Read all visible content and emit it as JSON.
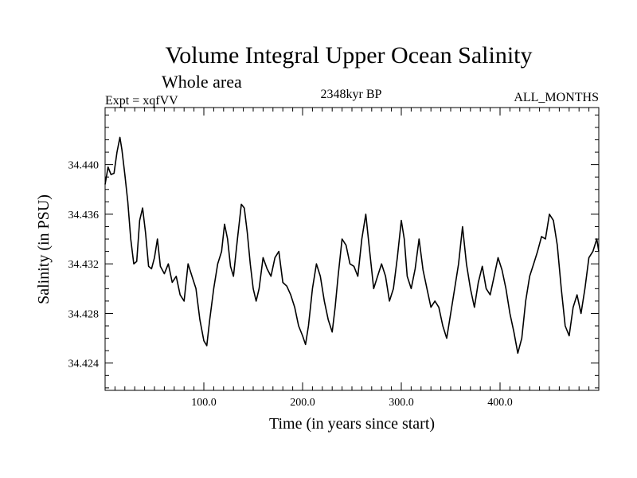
{
  "chart_data": {
    "type": "line",
    "title": "Volume Integral Upper Ocean Salinity",
    "subtitle": "Whole area",
    "header_left": "Expt = xqfVV",
    "header_center": "2348kyr BP",
    "header_right": "ALL_MONTHS",
    "xlabel": "Time (in years since start)",
    "ylabel": "Salinity (in PSU)",
    "xlim": [
      0,
      500
    ],
    "ylim": [
      34.4218,
      34.4446
    ],
    "xticks": [
      100,
      200,
      300,
      400
    ],
    "xtick_labels": [
      "100.0",
      "200.0",
      "300.0",
      "400.0"
    ],
    "yticks": [
      34.424,
      34.428,
      34.432,
      34.436,
      34.44
    ],
    "ytick_labels": [
      "34.424",
      "34.428",
      "34.432",
      "34.436",
      "34.440"
    ],
    "series": [
      {
        "name": "salinity",
        "x": [
          0,
          3,
          6,
          9,
          12,
          15,
          17,
          20,
          23,
          26,
          29,
          32,
          35,
          38,
          41,
          44,
          47,
          50,
          53,
          56,
          60,
          64,
          68,
          72,
          76,
          80,
          84,
          88,
          92,
          96,
          100,
          103,
          106,
          110,
          114,
          118,
          121,
          124,
          127,
          130,
          134,
          138,
          141,
          144,
          147,
          150,
          153,
          156,
          160,
          164,
          168,
          172,
          176,
          180,
          184,
          188,
          192,
          196,
          200,
          203,
          206,
          210,
          214,
          218,
          222,
          226,
          230,
          233,
          236,
          240,
          244,
          248,
          252,
          256,
          260,
          264,
          268,
          272,
          276,
          280,
          284,
          288,
          292,
          296,
          300,
          303,
          306,
          310,
          314,
          318,
          322,
          326,
          330,
          334,
          338,
          342,
          346,
          350,
          354,
          358,
          362,
          366,
          370,
          374,
          378,
          382,
          386,
          390,
          394,
          398,
          402,
          406,
          410,
          414,
          418,
          422,
          426,
          430,
          434,
          438,
          442,
          446,
          450,
          454,
          458,
          462,
          466,
          470,
          474,
          478,
          482,
          486,
          490,
          494,
          498,
          500
        ],
        "values": [
          34.4384,
          34.4398,
          34.4392,
          34.4393,
          34.441,
          34.4422,
          34.4412,
          34.4392,
          34.437,
          34.434,
          34.432,
          34.4322,
          34.4355,
          34.4365,
          34.4345,
          34.4318,
          34.4316,
          34.4325,
          34.434,
          34.4318,
          34.4312,
          34.432,
          34.4305,
          34.431,
          34.4295,
          34.429,
          34.432,
          34.431,
          34.43,
          34.4275,
          34.4258,
          34.4254,
          34.4275,
          34.43,
          34.432,
          34.433,
          34.4352,
          34.434,
          34.4318,
          34.431,
          34.434,
          34.4368,
          34.4365,
          34.4345,
          34.432,
          34.43,
          34.429,
          34.43,
          34.4325,
          34.4316,
          34.431,
          34.4325,
          34.433,
          34.4305,
          34.4302,
          34.4295,
          34.4285,
          34.427,
          34.4262,
          34.4255,
          34.427,
          34.43,
          34.432,
          34.431,
          34.429,
          34.4275,
          34.4265,
          34.4285,
          34.431,
          34.434,
          34.4335,
          34.432,
          34.4318,
          34.431,
          34.434,
          34.436,
          34.433,
          34.43,
          34.431,
          34.432,
          34.431,
          34.429,
          34.43,
          34.4325,
          34.4355,
          34.434,
          34.431,
          34.43,
          34.4316,
          34.434,
          34.4315,
          34.43,
          34.4285,
          34.429,
          34.4285,
          34.427,
          34.426,
          34.428,
          34.43,
          34.432,
          34.435,
          34.432,
          34.43,
          34.4285,
          34.4305,
          34.4318,
          34.43,
          34.4295,
          34.431,
          34.4325,
          34.4315,
          34.43,
          34.428,
          34.4265,
          34.4248,
          34.426,
          34.429,
          34.431,
          34.432,
          34.433,
          34.4342,
          34.434,
          34.436,
          34.4355,
          34.4335,
          34.43,
          34.427,
          34.4262,
          34.4285,
          34.4295,
          34.428,
          34.43,
          34.4325,
          34.433,
          34.434,
          34.433
        ]
      }
    ]
  }
}
